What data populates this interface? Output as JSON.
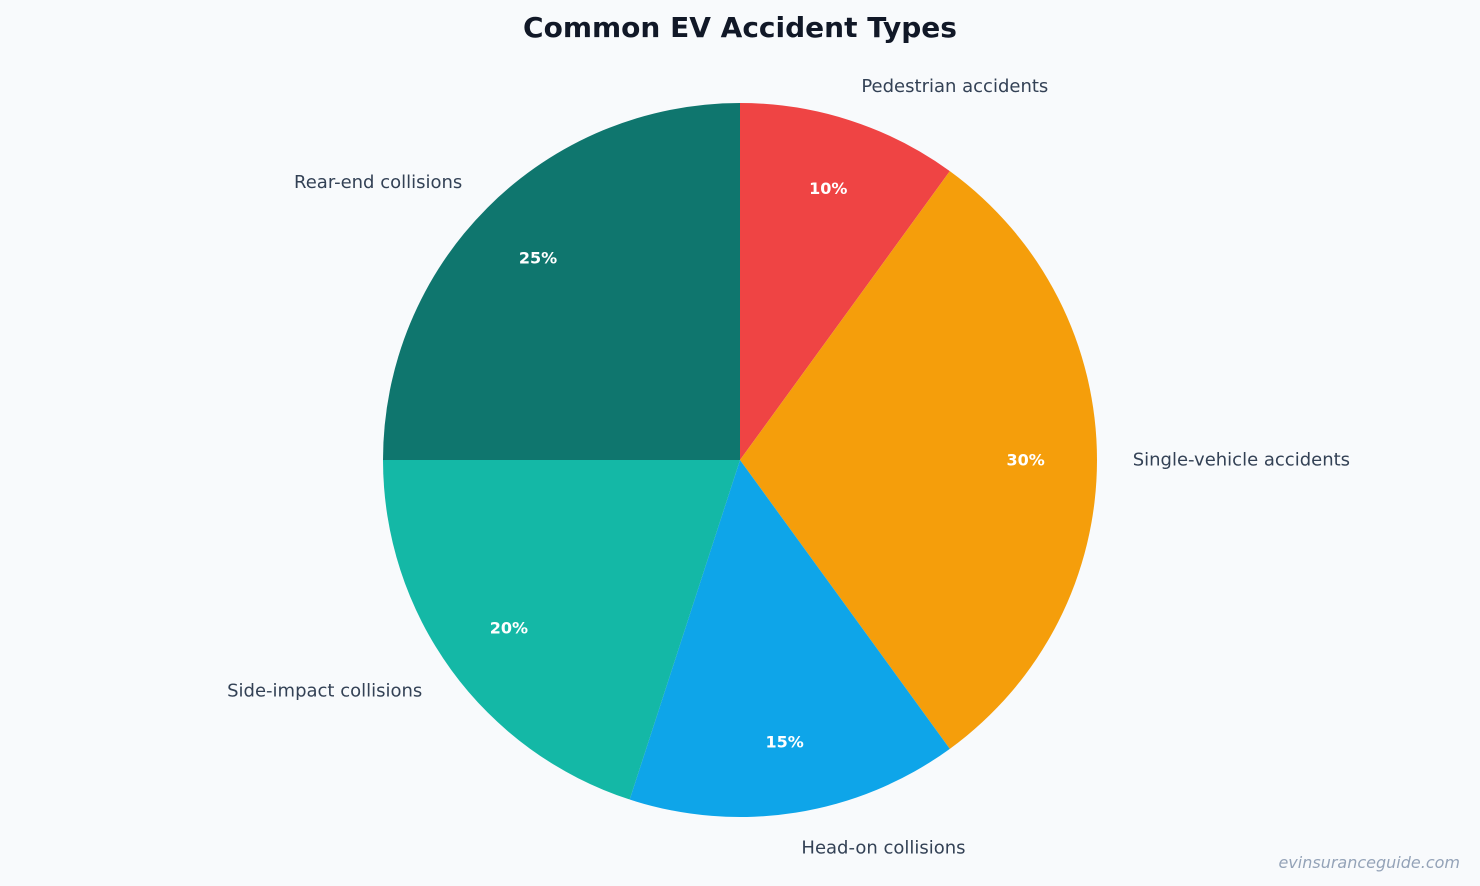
{
  "chart_data": {
    "type": "pie",
    "title": "Common EV Accident Types",
    "start_angle_deg": 90,
    "direction": "clockwise",
    "slices": [
      {
        "label": "Pedestrian accidents",
        "value": 10,
        "pct_label": "10%",
        "color": "#ef4444"
      },
      {
        "label": "Single-vehicle accidents",
        "value": 30,
        "pct_label": "30%",
        "color": "#f59e0b"
      },
      {
        "label": "Head-on collisions",
        "value": 15,
        "pct_label": "15%",
        "color": "#0ea5e9"
      },
      {
        "label": "Side-impact collisions",
        "value": 20,
        "pct_label": "20%",
        "color": "#14b8a6"
      },
      {
        "label": "Rear-end collisions",
        "value": 25,
        "pct_label": "25%",
        "color": "#0f766e"
      }
    ]
  },
  "watermark": "evinsuranceguide.com"
}
